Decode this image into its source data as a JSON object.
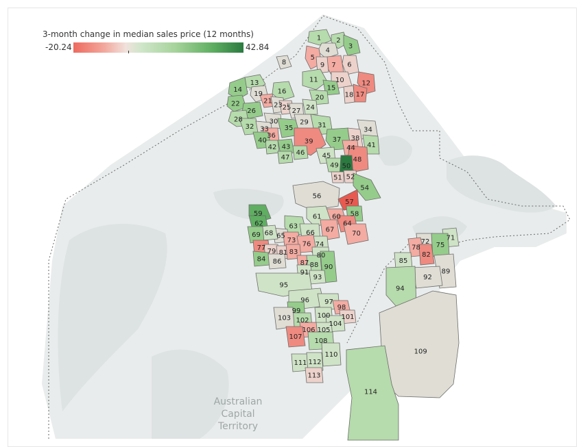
{
  "legend": {
    "title": "3-month change in median sales price (12 months)",
    "min_label": "-20.24",
    "max_label": "42.84",
    "colors": [
      "#ee6a5e",
      "#f3a79c",
      "#f0e2dc",
      "#cfe6c9",
      "#a6d39b",
      "#5dae61",
      "#2b7a40"
    ]
  },
  "map": {
    "region_label": "Australian\nCapital\nTerritory",
    "land_color": "#e9ecec",
    "boundary_style": "dotted"
  },
  "suburbs": [
    {
      "id": "1",
      "shade": "g2"
    },
    {
      "id": "2",
      "shade": "g2"
    },
    {
      "id": "3",
      "shade": "g3"
    },
    {
      "id": "4",
      "shade": "n"
    },
    {
      "id": "5",
      "shade": "r2"
    },
    {
      "id": "6",
      "shade": "r1"
    },
    {
      "id": "7",
      "shade": "r2"
    },
    {
      "id": "8",
      "shade": "n"
    },
    {
      "id": "9",
      "shade": "r1"
    },
    {
      "id": "10",
      "shade": "r1"
    },
    {
      "id": "11",
      "shade": "g2"
    },
    {
      "id": "12",
      "shade": "r3"
    },
    {
      "id": "13",
      "shade": "g2"
    },
    {
      "id": "14",
      "shade": "g3"
    },
    {
      "id": "15",
      "shade": "g3"
    },
    {
      "id": "16",
      "shade": "g2"
    },
    {
      "id": "17",
      "shade": "r3"
    },
    {
      "id": "18",
      "shade": "r1"
    },
    {
      "id": "19",
      "shade": "n"
    },
    {
      "id": "20",
      "shade": "g2"
    },
    {
      "id": "21",
      "shade": "r2"
    },
    {
      "id": "22",
      "shade": "g3"
    },
    {
      "id": "23",
      "shade": "n"
    },
    {
      "id": "24",
      "shade": "g1"
    },
    {
      "id": "25",
      "shade": "r1"
    },
    {
      "id": "26",
      "shade": "g3"
    },
    {
      "id": "27",
      "shade": "n"
    },
    {
      "id": "28",
      "shade": "g2"
    },
    {
      "id": "29",
      "shade": "n"
    },
    {
      "id": "30",
      "shade": "n"
    },
    {
      "id": "31",
      "shade": "g2"
    },
    {
      "id": "32",
      "shade": "g2"
    },
    {
      "id": "33",
      "shade": "n"
    },
    {
      "id": "34",
      "shade": "n"
    },
    {
      "id": "35",
      "shade": "g3"
    },
    {
      "id": "36",
      "shade": "r2"
    },
    {
      "id": "37",
      "shade": "g3"
    },
    {
      "id": "38",
      "shade": "r1"
    },
    {
      "id": "39",
      "shade": "r3"
    },
    {
      "id": "40",
      "shade": "g3"
    },
    {
      "id": "41",
      "shade": "g2"
    },
    {
      "id": "42",
      "shade": "g2"
    },
    {
      "id": "43",
      "shade": "g3"
    },
    {
      "id": "44",
      "shade": "r2"
    },
    {
      "id": "45",
      "shade": "g1"
    },
    {
      "id": "46",
      "shade": "g2"
    },
    {
      "id": "47",
      "shade": "g2"
    },
    {
      "id": "48",
      "shade": "r3"
    },
    {
      "id": "49",
      "shade": "g2"
    },
    {
      "id": "50",
      "shade": "g5"
    },
    {
      "id": "51",
      "shade": "r1"
    },
    {
      "id": "52",
      "shade": "r1"
    },
    {
      "id": "54",
      "shade": "g3"
    },
    {
      "id": "56",
      "shade": "n"
    },
    {
      "id": "57",
      "shade": "r4"
    },
    {
      "id": "58",
      "shade": "g3"
    },
    {
      "id": "59",
      "shade": "g4"
    },
    {
      "id": "60",
      "shade": "r2"
    },
    {
      "id": "61",
      "shade": "g1"
    },
    {
      "id": "62",
      "shade": "g4"
    },
    {
      "id": "63",
      "shade": "g2"
    },
    {
      "id": "64",
      "shade": "r3"
    },
    {
      "id": "65",
      "shade": "n"
    },
    {
      "id": "66",
      "shade": "g1"
    },
    {
      "id": "67",
      "shade": "r2"
    },
    {
      "id": "68",
      "shade": "g1"
    },
    {
      "id": "69",
      "shade": "g3"
    },
    {
      "id": "70",
      "shade": "r2"
    },
    {
      "id": "71",
      "shade": "g1"
    },
    {
      "id": "72",
      "shade": "n"
    },
    {
      "id": "73",
      "shade": "r2"
    },
    {
      "id": "74",
      "shade": "g1"
    },
    {
      "id": "75",
      "shade": "g3"
    },
    {
      "id": "76",
      "shade": "r2"
    },
    {
      "id": "77",
      "shade": "r3"
    },
    {
      "id": "78",
      "shade": "r2"
    },
    {
      "id": "79",
      "shade": "r1"
    },
    {
      "id": "80",
      "shade": "g1"
    },
    {
      "id": "81",
      "shade": "r1"
    },
    {
      "id": "82",
      "shade": "r3"
    },
    {
      "id": "83",
      "shade": "r2"
    },
    {
      "id": "84",
      "shade": "g3"
    },
    {
      "id": "85",
      "shade": "g1"
    },
    {
      "id": "86",
      "shade": "n"
    },
    {
      "id": "87",
      "shade": "r2"
    },
    {
      "id": "88",
      "shade": "g2"
    },
    {
      "id": "89",
      "shade": "n"
    },
    {
      "id": "90",
      "shade": "g3"
    },
    {
      "id": "91",
      "shade": "g1"
    },
    {
      "id": "92",
      "shade": "n"
    },
    {
      "id": "93",
      "shade": "g1"
    },
    {
      "id": "94",
      "shade": "g2"
    },
    {
      "id": "95",
      "shade": "g1"
    },
    {
      "id": "96",
      "shade": "g1"
    },
    {
      "id": "97",
      "shade": "g1"
    },
    {
      "id": "98",
      "shade": "r2"
    },
    {
      "id": "99",
      "shade": "g3"
    },
    {
      "id": "100",
      "shade": "g1"
    },
    {
      "id": "101",
      "shade": "r1"
    },
    {
      "id": "102",
      "shade": "g2"
    },
    {
      "id": "103",
      "shade": "n"
    },
    {
      "id": "104",
      "shade": "g1"
    },
    {
      "id": "105",
      "shade": "g1"
    },
    {
      "id": "106",
      "shade": "r2"
    },
    {
      "id": "107",
      "shade": "r3"
    },
    {
      "id": "108",
      "shade": "g2"
    },
    {
      "id": "109",
      "shade": "n"
    },
    {
      "id": "110",
      "shade": "g1"
    },
    {
      "id": "111",
      "shade": "g1"
    },
    {
      "id": "112",
      "shade": "g1"
    },
    {
      "id": "113",
      "shade": "r1"
    },
    {
      "id": "114",
      "shade": "g2"
    }
  ],
  "shade_colors": {
    "r4": "#e85a50",
    "r3": "#ef8a80",
    "r2": "#f3aba2",
    "r1": "#ecd2cb",
    "n": "#dfddd4",
    "g1": "#cfe3c6",
    "g2": "#b6dbac",
    "g3": "#95cc8b",
    "g4": "#5fae62",
    "g5": "#2b7a40"
  }
}
